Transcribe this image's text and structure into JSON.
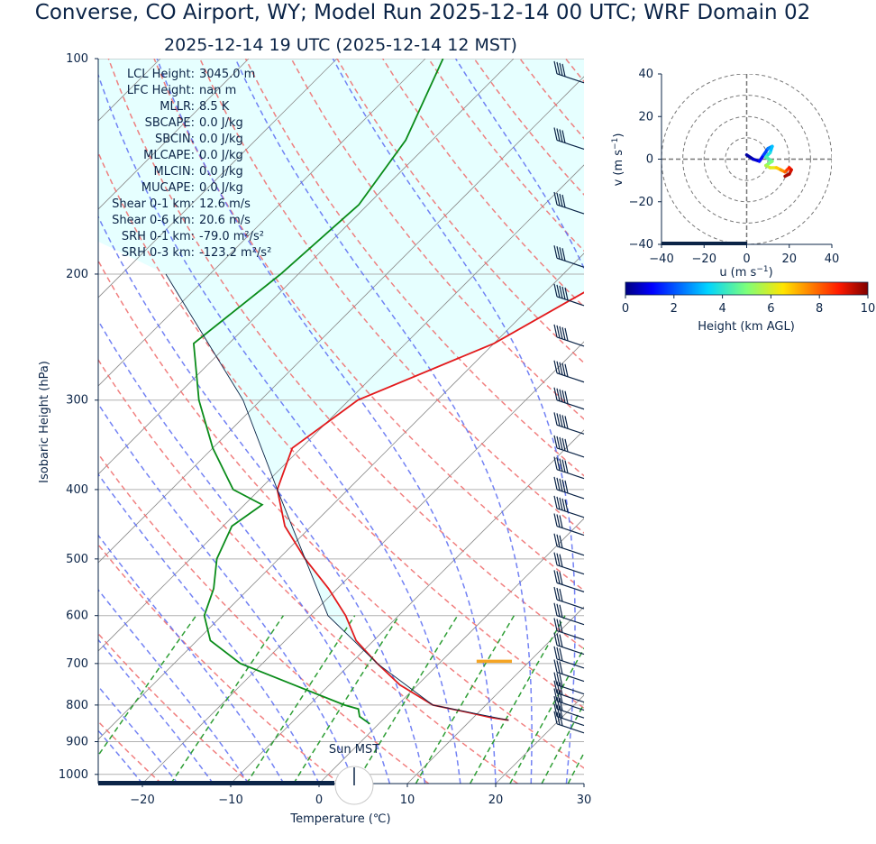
{
  "title": "Converse, CO Airport, WY; Model Run 2025-12-14 00 UTC; WRF Domain 02",
  "subtitle": "2025-12-14 19 UTC  (2025-12-14 12 MST)",
  "chart_data": [
    {
      "type": "line",
      "name": "skew-t",
      "xlabel": "Temperature (℃)",
      "ylabel": "Isobaric Height (hPa)",
      "xlim": [
        -25,
        30
      ],
      "ylim": [
        1030,
        100
      ],
      "yscale": "log",
      "skew_deg": 45,
      "xticks": [
        -20,
        -10,
        0,
        10,
        20,
        30
      ],
      "yticks": [
        100,
        200,
        300,
        400,
        500,
        600,
        700,
        800,
        900,
        1000
      ],
      "series": [
        {
          "color": "#e31a1c",
          "points": [
            [
              -14.5,
              100
            ],
            [
              -16.5,
              130
            ],
            [
              -19,
              160
            ],
            [
              -24,
              200
            ],
            [
              -30,
              250
            ],
            [
              -39,
              300
            ],
            [
              -41,
              350
            ],
            [
              -38,
              400
            ],
            [
              -33,
              450
            ],
            [
              -27,
              500
            ],
            [
              -21,
              550
            ],
            [
              -16,
              600
            ],
            [
              -12,
              650
            ],
            [
              -7,
              700
            ],
            [
              -2,
              750
            ],
            [
              4,
              800
            ],
            [
              9,
              820
            ],
            [
              12,
              833
            ],
            [
              14.3,
              840
            ]
          ]
        },
        {
          "color": "#0a8c1a",
          "points": [
            [
              -68,
              100
            ],
            [
              -63,
              130
            ],
            [
              -61,
              160
            ],
            [
              -62,
              200
            ],
            [
              -64,
              250
            ],
            [
              -57,
              300
            ],
            [
              -50,
              350
            ],
            [
              -43,
              400
            ],
            [
              -38,
              420
            ],
            [
              -39,
              450
            ],
            [
              -37,
              500
            ],
            [
              -34,
              550
            ],
            [
              -32,
              600
            ],
            [
              -28.5,
              650
            ],
            [
              -22.5,
              700
            ],
            [
              -14,
              750
            ],
            [
              -6,
              800
            ],
            [
              -4,
              810
            ],
            [
              -3,
              830
            ],
            [
              -1,
              850
            ]
          ]
        },
        {
          "color": "#0b2447",
          "points": [
            [
              14.3,
              840
            ],
            [
              4,
              800
            ],
            [
              -7,
              700
            ],
            [
              -18,
              600
            ],
            [
              -27,
              500
            ],
            [
              -38,
              400
            ],
            [
              -52,
              300
            ],
            [
              -75,
              200
            ]
          ]
        }
      ],
      "cape_shading_color": "#e6ffff",
      "lcl_marker": {
        "pressure": 695,
        "t1": 4,
        "t2": 8,
        "color": "#f5a524"
      },
      "background_lines": {
        "isotherm_color": "#8c8c8c",
        "dry_adiabat_color": "#ee6a6a",
        "moist_adiabat_color": "#5b6cf2",
        "mixing_ratio_color": "#2e9e35"
      }
    },
    {
      "type": "line",
      "name": "hodograph",
      "xlabel": "u (m s$^{-1}$)",
      "ylabel": "v (m s$^{-1}$)",
      "xlim": [
        -40,
        40
      ],
      "ylim": [
        -40,
        40
      ],
      "xticks": [
        -40,
        -20,
        0,
        20,
        40
      ],
      "yticks": [
        -40,
        -20,
        0,
        20,
        40
      ],
      "rings": [
        10,
        20,
        30,
        40
      ],
      "points": [
        [
          0,
          2
        ],
        [
          3,
          0
        ],
        [
          6,
          -1
        ],
        [
          8,
          2
        ],
        [
          10,
          5
        ],
        [
          12,
          6
        ],
        [
          11,
          3
        ],
        [
          9,
          1
        ],
        [
          12,
          -1
        ],
        [
          9,
          -3
        ],
        [
          11,
          -4
        ],
        [
          14,
          -4
        ],
        [
          16,
          -5
        ],
        [
          18,
          -6
        ],
        [
          19,
          -5
        ],
        [
          20,
          -4
        ],
        [
          21,
          -5
        ],
        [
          20,
          -7
        ],
        [
          18,
          -8
        ]
      ],
      "heights_km": [
        0,
        0.3,
        0.7,
        1.2,
        1.8,
        2.5,
        3.2,
        3.8,
        4.4,
        5.0,
        5.6,
        6.2,
        6.8,
        7.4,
        8.0,
        8.4,
        8.8,
        9.2,
        9.6
      ]
    }
  ],
  "colorbar": {
    "label": "Height (km AGL)",
    "ticks": [
      "0",
      "2",
      "4",
      "6",
      "8",
      "10"
    ]
  },
  "stats": [
    {
      "label": "LCL Height:",
      "value": "3045.0 m"
    },
    {
      "label": "LFC Height:",
      "value": "nan m"
    },
    {
      "label": "MLLR:",
      "value": "8.5 K"
    },
    {
      "label": "SBCAPE:",
      "value": "0.0 J/kg"
    },
    {
      "label": "SBCIN:",
      "value": "0.0 J/kg"
    },
    {
      "label": "MLCAPE:",
      "value": "0.0 J/kg"
    },
    {
      "label": "MLCIN:",
      "value": "0.0 J/kg"
    },
    {
      "label": "MUCAPE:",
      "value": "0.0 J/kg"
    },
    {
      "label": "Shear 0-1 km:",
      "value": "12.6 m/s"
    },
    {
      "label": "Shear 0-6 km:",
      "value": "20.6 m/s"
    },
    {
      "label": "SRH 0-1 km:",
      "value": "-79.0 m²/s²"
    },
    {
      "label": "SRH 0-3 km:",
      "value": "-123.2 m²/s²"
    }
  ],
  "sun_label": "Sun MST"
}
